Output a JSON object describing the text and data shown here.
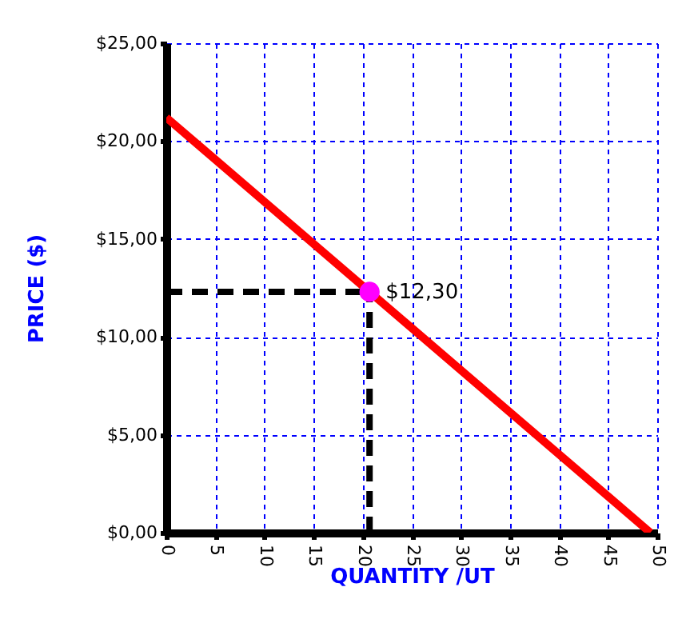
{
  "chart_data": {
    "type": "line",
    "xlabel": "QUANTITY /UT",
    "ylabel": "PRICE ($)",
    "xlim": [
      0,
      50
    ],
    "ylim": [
      0,
      25
    ],
    "xticks": [
      0,
      5,
      10,
      15,
      20,
      25,
      30,
      35,
      40,
      45,
      50
    ],
    "yticks": [
      {
        "value": 0,
        "label": "$0,00"
      },
      {
        "value": 5,
        "label": "$5,00"
      },
      {
        "value": 10,
        "label": "$10,00"
      },
      {
        "value": 15,
        "label": "$15,00"
      },
      {
        "value": 20,
        "label": "$20,00"
      },
      {
        "value": 25,
        "label": "$25,00"
      }
    ],
    "grid": true,
    "series": [
      {
        "type": "line",
        "color": "#ff0000",
        "x": [
          0,
          49.3
        ],
        "values": [
          21.2,
          0
        ]
      },
      {
        "type": "line",
        "color": "#000000",
        "line_style": "dashed",
        "x": [
          0,
          20.7
        ],
        "values": [
          12.3,
          12.3
        ]
      },
      {
        "type": "line",
        "color": "#000000",
        "line_style": "dashed",
        "x": [
          20.7,
          20.7
        ],
        "values": [
          0,
          12.3
        ]
      },
      {
        "type": "scatter",
        "color": "#ff00ff",
        "x": [
          20.7
        ],
        "values": [
          12.3
        ]
      }
    ],
    "annotations": [
      {
        "text": "$12,30",
        "x": 20.7,
        "y": 12.3
      }
    ]
  }
}
